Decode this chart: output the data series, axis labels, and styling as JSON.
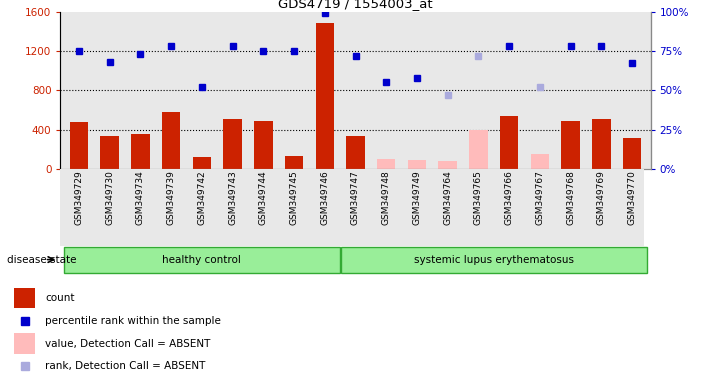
{
  "title": "GDS4719 / 1554003_at",
  "categories": [
    "GSM349729",
    "GSM349730",
    "GSM349734",
    "GSM349739",
    "GSM349742",
    "GSM349743",
    "GSM349744",
    "GSM349745",
    "GSM349746",
    "GSM349747",
    "GSM349748",
    "GSM349749",
    "GSM349764",
    "GSM349765",
    "GSM349766",
    "GSM349767",
    "GSM349768",
    "GSM349769",
    "GSM349770"
  ],
  "count_values": [
    480,
    330,
    360,
    580,
    120,
    510,
    490,
    130,
    1480,
    340,
    100,
    90,
    80,
    400,
    540,
    150,
    490,
    510,
    310
  ],
  "absent_count": [
    false,
    false,
    false,
    false,
    false,
    false,
    false,
    false,
    false,
    false,
    true,
    true,
    true,
    true,
    false,
    true,
    false,
    false,
    false
  ],
  "percentile_values": [
    75,
    68,
    73,
    78,
    52,
    78,
    75,
    75,
    99,
    72,
    55,
    58,
    47,
    72,
    78,
    52,
    78,
    78,
    67
  ],
  "absent_percentile": [
    false,
    false,
    false,
    false,
    false,
    false,
    false,
    false,
    false,
    false,
    false,
    false,
    true,
    true,
    false,
    true,
    false,
    false,
    false
  ],
  "healthy_control": [
    "GSM349729",
    "GSM349730",
    "GSM349734",
    "GSM349739",
    "GSM349742",
    "GSM349743",
    "GSM349744",
    "GSM349745",
    "GSM349746"
  ],
  "lupus": [
    "GSM349747",
    "GSM349748",
    "GSM349749",
    "GSM349764",
    "GSM349765",
    "GSM349766",
    "GSM349767",
    "GSM349768",
    "GSM349769",
    "GSM349770"
  ],
  "ylim_left": [
    0,
    1600
  ],
  "ylim_right": [
    0,
    100
  ],
  "yticks_left": [
    0,
    400,
    800,
    1200,
    1600
  ],
  "yticks_right": [
    0,
    25,
    50,
    75,
    100
  ],
  "bar_color_present": "#cc2200",
  "bar_color_absent": "#ffbbbb",
  "dot_color_present": "#0000cc",
  "dot_color_absent": "#aaaadd",
  "bg_color": "#e8e8e8",
  "legend_items": [
    {
      "label": "count",
      "color": "#cc2200",
      "type": "bar"
    },
    {
      "label": "percentile rank within the sample",
      "color": "#0000cc",
      "type": "dot"
    },
    {
      "label": "value, Detection Call = ABSENT",
      "color": "#ffbbbb",
      "type": "bar"
    },
    {
      "label": "rank, Detection Call = ABSENT",
      "color": "#aaaadd",
      "type": "dot"
    }
  ],
  "group_labels": [
    "healthy control",
    "systemic lupus erythematosus"
  ],
  "disease_state_label": "disease state",
  "healthy_count": 9,
  "lupus_count": 10
}
